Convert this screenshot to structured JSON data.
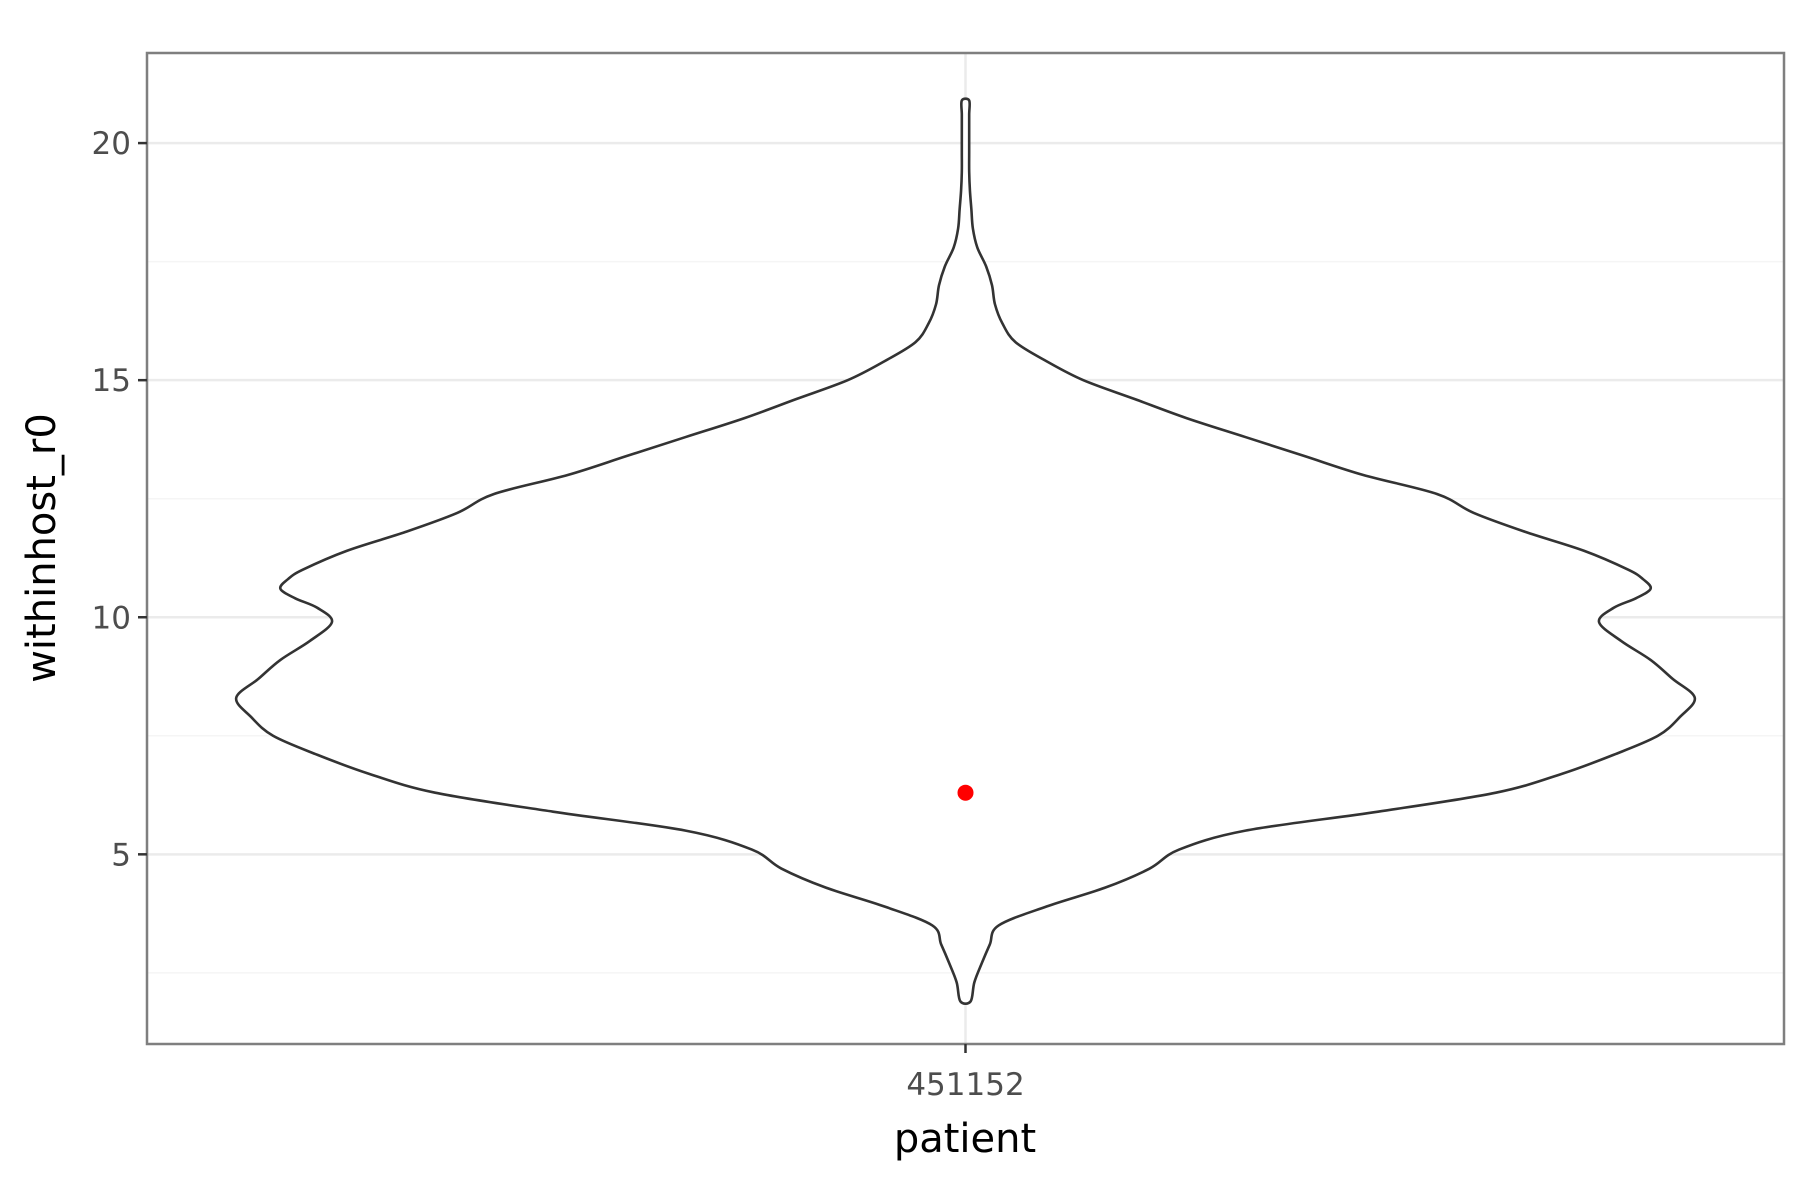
{
  "chart_data": {
    "type": "violin",
    "title": "",
    "xlabel": "patient",
    "ylabel": "withinhost_r0",
    "categories": [
      "451152"
    ],
    "ylim": [
      1.0,
      21.9
    ],
    "y_ticks": [
      5,
      10,
      15,
      20
    ],
    "y_tick_labels": [
      "5",
      "10",
      "15",
      "20"
    ],
    "y_minor_ticks": [
      2.5,
      7.5,
      12.5,
      17.5
    ],
    "grid": true,
    "legend": "none",
    "series": [
      {
        "category": "451152",
        "y_range": [
          1.9,
          20.9
        ],
        "density_profile": [
          [
            1.9,
            0.007
          ],
          [
            2.3,
            0.012
          ],
          [
            2.7,
            0.022
          ],
          [
            3.1,
            0.033
          ],
          [
            3.5,
            0.045
          ],
          [
            3.9,
            0.11
          ],
          [
            4.3,
            0.19
          ],
          [
            4.7,
            0.25
          ],
          [
            5.1,
            0.29
          ],
          [
            5.5,
            0.38
          ],
          [
            5.9,
            0.56
          ],
          [
            6.3,
            0.72
          ],
          [
            6.7,
            0.81
          ],
          [
            7.1,
            0.88
          ],
          [
            7.5,
            0.94
          ],
          [
            7.9,
            0.97
          ],
          [
            8.3,
            0.99
          ],
          [
            8.7,
            0.96
          ],
          [
            9.1,
            0.93
          ],
          [
            9.5,
            0.89
          ],
          [
            9.9,
            0.86
          ],
          [
            10.2,
            0.88
          ],
          [
            10.4,
            0.91
          ],
          [
            10.6,
            0.93
          ],
          [
            10.8,
            0.92
          ],
          [
            11.0,
            0.9
          ],
          [
            11.4,
            0.84
          ],
          [
            11.8,
            0.76
          ],
          [
            12.2,
            0.69
          ],
          [
            12.6,
            0.64
          ],
          [
            13.0,
            0.54
          ],
          [
            13.4,
            0.46
          ],
          [
            13.8,
            0.38
          ],
          [
            14.2,
            0.3
          ],
          [
            14.6,
            0.23
          ],
          [
            15.0,
            0.16
          ],
          [
            15.4,
            0.11
          ],
          [
            15.8,
            0.068
          ],
          [
            16.2,
            0.05
          ],
          [
            16.6,
            0.04
          ],
          [
            17.0,
            0.036
          ],
          [
            17.4,
            0.028
          ],
          [
            17.8,
            0.016
          ],
          [
            18.2,
            0.01
          ],
          [
            18.6,
            0.008
          ],
          [
            19.0,
            0.006
          ],
          [
            19.4,
            0.005
          ],
          [
            19.8,
            0.005
          ],
          [
            20.2,
            0.005
          ],
          [
            20.6,
            0.005
          ],
          [
            20.9,
            0.005
          ]
        ]
      }
    ],
    "points": [
      {
        "category": "451152",
        "y": 6.3,
        "color": "#ff0000"
      }
    ],
    "colors": {
      "violin_stroke": "#333333",
      "violin_fill": "#ffffff",
      "panel_border": "#7f7f7f",
      "grid_major": "#ebebeb",
      "grid_minor": "#f5f5f5",
      "point": "#ff0000"
    }
  }
}
